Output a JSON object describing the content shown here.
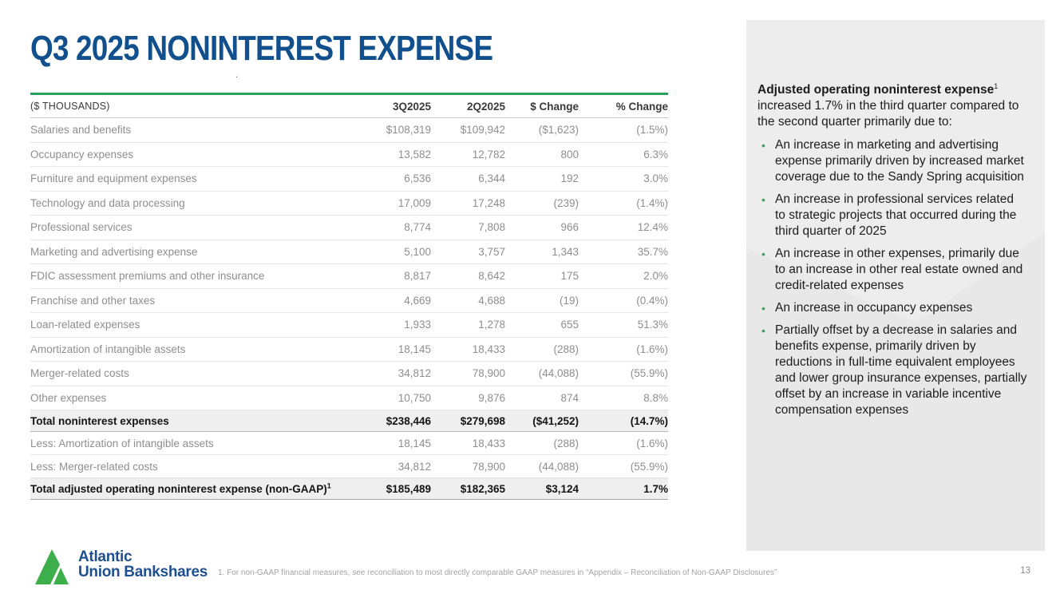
{
  "title": "Q3 2025 NONINTEREST EXPENSE",
  "stray_dot": ".",
  "colors": {
    "title_blue": "#11508c",
    "accent_green": "#2aa05f",
    "bullet_green": "#3aa45e",
    "logo_green": "#3cae4a",
    "logo_blue": "#1d4f91",
    "total_row_bg": "#efefef",
    "sidebar_bg": "#ededed"
  },
  "table": {
    "unit_label": "($ THOUSANDS)",
    "columns": [
      "3Q2025",
      "2Q2025",
      "$ Change",
      "% Change"
    ],
    "rows": [
      {
        "label": "Salaries and benefits",
        "q3": "$108,319",
        "q2": "$109,942",
        "dollar_change": "($1,623)",
        "pct_change": "(1.5%)",
        "style": "normal"
      },
      {
        "label": "Occupancy expenses",
        "q3": "13,582",
        "q2": "12,782",
        "dollar_change": "800",
        "pct_change": "6.3%",
        "style": "normal"
      },
      {
        "label": "Furniture and equipment expenses",
        "q3": "6,536",
        "q2": "6,344",
        "dollar_change": "192",
        "pct_change": "3.0%",
        "style": "normal"
      },
      {
        "label": "Technology and data processing",
        "q3": "17,009",
        "q2": "17,248",
        "dollar_change": "(239)",
        "pct_change": "(1.4%)",
        "style": "normal"
      },
      {
        "label": "Professional services",
        "q3": "8,774",
        "q2": "7,808",
        "dollar_change": "966",
        "pct_change": "12.4%",
        "style": "normal"
      },
      {
        "label": "Marketing and advertising expense",
        "q3": "5,100",
        "q2": "3,757",
        "dollar_change": "1,343",
        "pct_change": "35.7%",
        "style": "normal"
      },
      {
        "label": "FDIC assessment premiums and other insurance",
        "q3": "8,817",
        "q2": "8,642",
        "dollar_change": "175",
        "pct_change": "2.0%",
        "style": "normal"
      },
      {
        "label": "Franchise and other taxes",
        "q3": "4,669",
        "q2": "4,688",
        "dollar_change": "(19)",
        "pct_change": "(0.4%)",
        "style": "normal"
      },
      {
        "label": "Loan-related expenses",
        "q3": "1,933",
        "q2": "1,278",
        "dollar_change": "655",
        "pct_change": "51.3%",
        "style": "normal"
      },
      {
        "label": "Amortization of intangible assets",
        "q3": "18,145",
        "q2": "18,433",
        "dollar_change": "(288)",
        "pct_change": "(1.6%)",
        "style": "normal"
      },
      {
        "label": "Merger-related costs",
        "q3": "34,812",
        "q2": "78,900",
        "dollar_change": "(44,088)",
        "pct_change": "(55.9%)",
        "style": "normal"
      },
      {
        "label": "Other expenses",
        "q3": "10,750",
        "q2": "9,876",
        "dollar_change": "874",
        "pct_change": "8.8%",
        "style": "normal"
      },
      {
        "label": "Total noninterest expenses",
        "q3": "$238,446",
        "q2": "$279,698",
        "dollar_change": "($41,252)",
        "pct_change": "(14.7%)",
        "style": "total"
      },
      {
        "label": "Less: Amortization of intangible assets",
        "q3": "18,145",
        "q2": "18,433",
        "dollar_change": "(288)",
        "pct_change": "(1.6%)",
        "style": "less"
      },
      {
        "label": "Less: Merger-related costs",
        "q3": "34,812",
        "q2": "78,900",
        "dollar_change": "(44,088)",
        "pct_change": "(55.9%)",
        "style": "less"
      },
      {
        "label": "Total adjusted operating noninterest expense (non-GAAP)",
        "label_sup": "1",
        "q3": "$185,489",
        "q2": "$182,365",
        "dollar_change": "$3,124",
        "pct_change": "1.7%",
        "style": "grand"
      }
    ]
  },
  "sidebar": {
    "intro_bold": "Adjusted operating noninterest expense",
    "intro_sup": "1",
    "intro_rest": " increased 1.7% in the third quarter compared to the second quarter primarily due to:",
    "bullet_glyph": "•",
    "bullets": [
      "An increase in marketing and advertising expense primarily driven by increased market coverage due to the Sandy Spring acquisition",
      "An increase in professional services related to strategic projects that occurred during the third quarter of 2025",
      "An increase in other expenses, primarily due to an increase in other real estate owned and credit-related expenses",
      "An increase in occupancy expenses",
      "Partially offset by a decrease in salaries and benefits expense, primarily driven by reductions in full-time equivalent employees and lower group insurance expenses, partially offset by an increase in variable incentive compensation expenses"
    ]
  },
  "footer": {
    "logo_line1": "Atlantic",
    "logo_line2": "Union Bankshares",
    "footnote": "1. For non-GAAP financial measures, see reconciliation to most directly comparable GAAP measures in “Appendix – Reconciliation of Non-GAAP Disclosures”",
    "page_number": "13"
  }
}
